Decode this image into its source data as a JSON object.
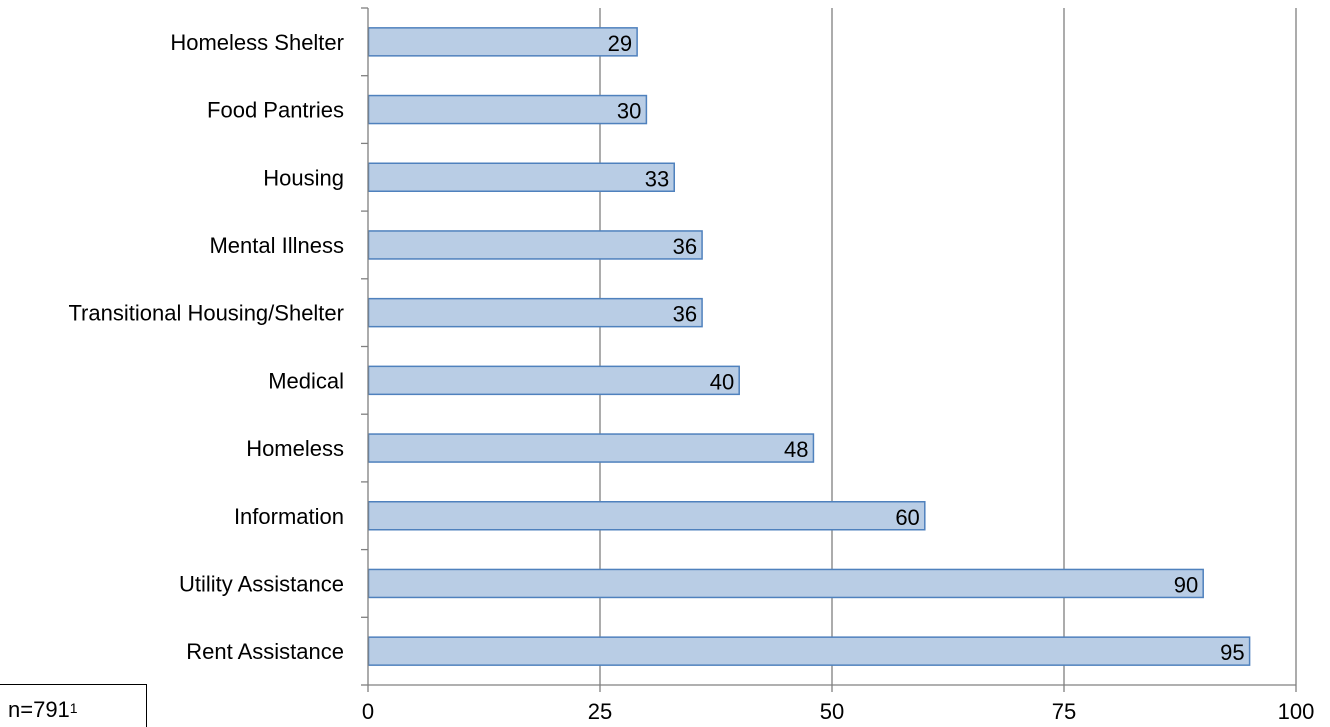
{
  "chart_data": {
    "type": "bar",
    "orientation": "horizontal",
    "categories": [
      "Homeless Shelter",
      "Food Pantries",
      "Housing",
      "Mental Illness",
      "Transitional Housing/Shelter",
      "Medical",
      "Homeless",
      "Information",
      "Utility Assistance",
      "Rent Assistance"
    ],
    "values": [
      29,
      30,
      33,
      36,
      36,
      40,
      48,
      60,
      90,
      95
    ],
    "xlim": [
      0,
      100
    ],
    "xticks": [
      "0",
      "25",
      "50",
      "75",
      "100"
    ],
    "grid": "vertical",
    "legend": "none",
    "data_labels": "inside-end",
    "title": "",
    "xlabel": "",
    "ylabel": "",
    "colors": {
      "bar_fill": "#b9cde5",
      "bar_stroke": "#4f81bd",
      "grid": "#808080",
      "axis": "#808080"
    }
  },
  "note": {
    "text": "n=791",
    "superscript": "1"
  }
}
